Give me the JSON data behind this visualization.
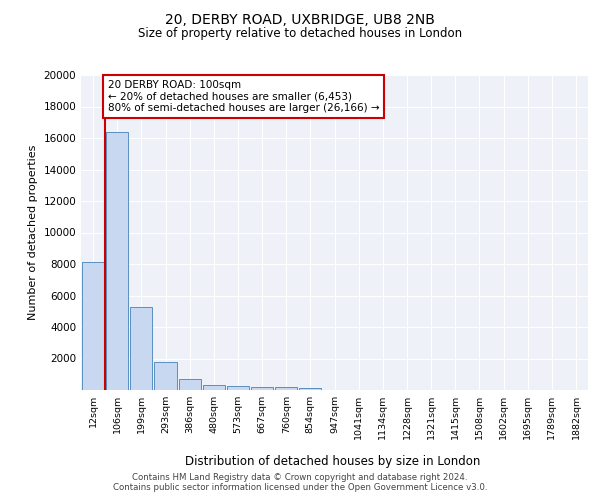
{
  "title1": "20, DERBY ROAD, UXBRIDGE, UB8 2NB",
  "title2": "Size of property relative to detached houses in London",
  "xlabel": "Distribution of detached houses by size in London",
  "ylabel": "Number of detached properties",
  "categories": [
    "12sqm",
    "106sqm",
    "199sqm",
    "293sqm",
    "386sqm",
    "480sqm",
    "573sqm",
    "667sqm",
    "760sqm",
    "854sqm",
    "947sqm",
    "1041sqm",
    "1134sqm",
    "1228sqm",
    "1321sqm",
    "1415sqm",
    "1508sqm",
    "1602sqm",
    "1695sqm",
    "1789sqm",
    "1882sqm"
  ],
  "values": [
    8100,
    16400,
    5300,
    1750,
    700,
    300,
    225,
    200,
    175,
    150,
    0,
    0,
    0,
    0,
    0,
    0,
    0,
    0,
    0,
    0,
    0
  ],
  "bar_color": "#c8d8f0",
  "bar_edge_color": "#5a8fc0",
  "bg_color": "#eef2f8",
  "grid_color": "#ffffff",
  "annotation_text": "20 DERBY ROAD: 100sqm\n← 20% of detached houses are smaller (6,453)\n80% of semi-detached houses are larger (26,166) →",
  "annotation_box_color": "#ffffff",
  "annotation_box_edge": "#cc0000",
  "red_line_color": "#cc0000",
  "footer1": "Contains HM Land Registry data © Crown copyright and database right 2024.",
  "footer2": "Contains public sector information licensed under the Open Government Licence v3.0.",
  "ylim": [
    0,
    20000
  ],
  "yticks": [
    0,
    2000,
    4000,
    6000,
    8000,
    10000,
    12000,
    14000,
    16000,
    18000,
    20000
  ]
}
